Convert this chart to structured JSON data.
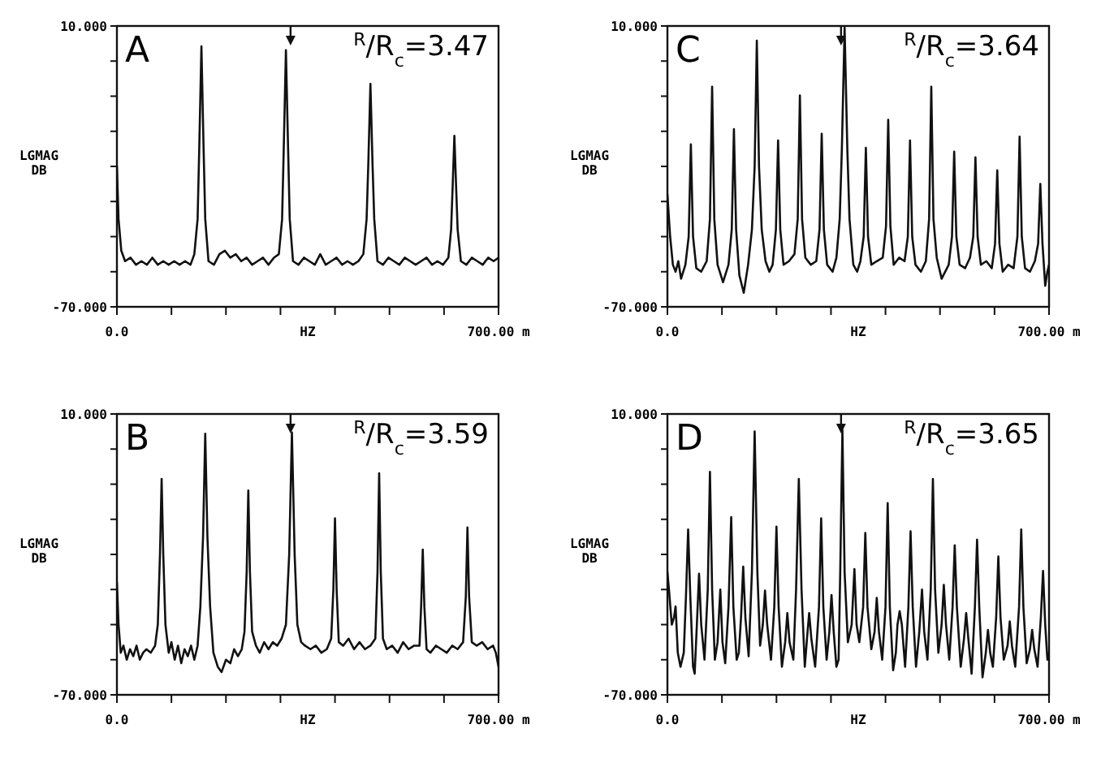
{
  "chart_data": [
    {
      "type": "line",
      "title": "A",
      "annotations": [
        "$^{R}$/R$_{c}$=3.47"
      ],
      "xlabel": "HZ",
      "ylabel": "LGMAG\nDB",
      "xlim": [
        0,
        700
      ],
      "ylim": [
        -70,
        10
      ],
      "xticks": [
        {
          "value": 0,
          "label": "0.0"
        },
        {
          "value": 100,
          "label": null
        },
        {
          "value": 200,
          "label": null
        },
        {
          "value": 300,
          "label": null
        },
        {
          "value": 400,
          "label": null
        },
        {
          "value": 500,
          "label": null
        },
        {
          "value": 600,
          "label": null
        },
        {
          "value": 700,
          "label": "700.00 m"
        }
      ],
      "yticks": [
        {
          "value": 10,
          "label": "10.000"
        },
        {
          "value": 0,
          "label": null
        },
        {
          "value": -10,
          "label": null
        },
        {
          "value": -20,
          "label": null
        },
        {
          "value": -30,
          "label": null
        },
        {
          "value": -40,
          "label": null
        },
        {
          "value": -50,
          "label": null
        },
        {
          "value": -60,
          "label": null
        },
        {
          "value": -70,
          "label": "-70.000"
        }
      ],
      "color": "#111111",
      "x": [
        0,
        3,
        8,
        15,
        25,
        35,
        45,
        55,
        65,
        75,
        85,
        95,
        105,
        115,
        125,
        135,
        142,
        148,
        151,
        155,
        159,
        162,
        168,
        178,
        188,
        198,
        208,
        218,
        228,
        238,
        248,
        258,
        268,
        278,
        288,
        297,
        303,
        306,
        310,
        314,
        317,
        323,
        333,
        343,
        353,
        363,
        373,
        383,
        393,
        403,
        413,
        423,
        433,
        443,
        452,
        458,
        461,
        465,
        469,
        472,
        478,
        488,
        498,
        508,
        518,
        528,
        538,
        548,
        558,
        568,
        578,
        588,
        598,
        608,
        613,
        616,
        619,
        622,
        625,
        631,
        641,
        651,
        661,
        671,
        681,
        691,
        700
      ],
      "values": [
        -30,
        -45,
        -54,
        -57,
        -56,
        -58,
        -57,
        -58,
        -56,
        -58,
        -57,
        -58,
        -57,
        -58,
        -57,
        -58,
        -55,
        -45,
        -25,
        4.2,
        -25,
        -45,
        -57,
        -58,
        -55,
        -54,
        -56,
        -55,
        -57,
        -56,
        -58,
        -57,
        -56,
        -58,
        -56,
        -55,
        -45,
        -25,
        3.1,
        -25,
        -45,
        -57,
        -58,
        -56,
        -57,
        -58,
        -55,
        -58,
        -57,
        -56,
        -58,
        -57,
        -58,
        -57,
        -55,
        -45,
        -30,
        -6.5,
        -30,
        -45,
        -57,
        -58,
        -56,
        -57,
        -58,
        -56,
        -57,
        -58,
        -57,
        -56,
        -58,
        -57,
        -58,
        -56,
        -48,
        -35,
        -21.3,
        -35,
        -48,
        -57,
        -58,
        -56,
        -57,
        -58,
        -56,
        -57,
        -56
      ]
    },
    {
      "type": "line",
      "title": "C",
      "annotations": [
        "$^{R}$/R$_{c}$=3.64"
      ],
      "xlabel": "HZ",
      "ylabel": "LGMAG\nDB",
      "xlim": [
        0,
        700
      ],
      "ylim": [
        -70,
        10
      ],
      "xticks": [
        {
          "value": 0,
          "label": "0.0"
        },
        {
          "value": 100,
          "label": null
        },
        {
          "value": 200,
          "label": null
        },
        {
          "value": 300,
          "label": null
        },
        {
          "value": 400,
          "label": null
        },
        {
          "value": 500,
          "label": null
        },
        {
          "value": 600,
          "label": null
        },
        {
          "value": 700,
          "label": "700.00 m"
        }
      ],
      "yticks": [
        {
          "value": 10,
          "label": "10.000"
        },
        {
          "value": 0,
          "label": null
        },
        {
          "value": -10,
          "label": null
        },
        {
          "value": -20,
          "label": null
        },
        {
          "value": -30,
          "label": null
        },
        {
          "value": -40,
          "label": null
        },
        {
          "value": -50,
          "label": null
        },
        {
          "value": -60,
          "label": null
        },
        {
          "value": -70,
          "label": "-70.000"
        }
      ],
      "color": "#111111",
      "x": [
        0,
        5,
        10,
        15,
        20,
        25,
        33,
        39,
        43,
        47,
        53,
        62,
        72,
        78,
        82,
        86,
        92,
        102,
        112,
        118,
        122,
        126,
        132,
        140,
        148,
        155,
        160,
        164,
        168,
        173,
        180,
        187,
        193,
        199,
        203,
        207,
        213,
        223,
        233,
        239,
        243,
        247,
        253,
        263,
        273,
        279,
        283,
        287,
        293,
        303,
        310,
        316,
        320,
        325,
        330,
        334,
        341,
        348,
        354,
        360,
        364,
        368,
        374,
        384,
        395,
        401,
        405,
        409,
        415,
        425,
        435,
        441,
        445,
        449,
        455,
        465,
        474,
        480,
        484,
        488,
        494,
        503,
        516,
        522,
        526,
        530,
        536,
        546,
        555,
        561,
        565,
        569,
        575,
        585,
        595,
        601,
        605,
        609,
        615,
        625,
        635,
        642,
        646,
        650,
        656,
        665,
        674,
        680,
        684,
        688,
        693,
        697,
        700
      ],
      "values": [
        -38,
        -50,
        -58,
        -60,
        -57,
        -62,
        -58,
        -50,
        -23.7,
        -50,
        -59,
        -60,
        -57,
        -45,
        -7.3,
        -45,
        -58,
        -63,
        -58,
        -48,
        -19.4,
        -48,
        -61,
        -66,
        -58,
        -48,
        -30,
        5.8,
        -30,
        -48,
        -57,
        -60,
        -58,
        -48,
        -22.6,
        -48,
        -58,
        -57,
        -55,
        -45,
        -9.8,
        -45,
        -56,
        -58,
        -57,
        -48,
        -20.7,
        -48,
        -58,
        -60,
        -56,
        -45,
        -25,
        9.5,
        -25,
        -45,
        -58,
        -60,
        -57,
        -50,
        -24.7,
        -50,
        -58,
        -57,
        -56,
        -47,
        -16.7,
        -47,
        -58,
        -56,
        -57,
        -50,
        -22.6,
        -50,
        -58,
        -60,
        -57,
        -45,
        -7.3,
        -45,
        -56,
        -62,
        -58,
        -50,
        -25.8,
        -50,
        -58,
        -59,
        -56,
        -50,
        -27.4,
        -50,
        -58,
        -57,
        -59,
        -52,
        -31.1,
        -52,
        -60,
        -58,
        -59,
        -50,
        -21.5,
        -50,
        -59,
        -60,
        -57,
        -52,
        -35,
        -52,
        -64,
        -60,
        -58
      ]
    },
    {
      "type": "line",
      "title": "B",
      "annotations": [
        "$^{R}$/R$_{c}$=3.59"
      ],
      "xlabel": "HZ",
      "ylabel": "LGMAG\nDB",
      "xlim": [
        0,
        700
      ],
      "ylim": [
        -70,
        10
      ],
      "xticks": [
        {
          "value": 0,
          "label": "0.0"
        },
        {
          "value": 100,
          "label": null
        },
        {
          "value": 200,
          "label": null
        },
        {
          "value": 300,
          "label": null
        },
        {
          "value": 400,
          "label": null
        },
        {
          "value": 500,
          "label": null
        },
        {
          "value": 600,
          "label": null
        },
        {
          "value": 700,
          "label": "700.00 m"
        }
      ],
      "yticks": [
        {
          "value": 10,
          "label": "10.000"
        },
        {
          "value": 0,
          "label": null
        },
        {
          "value": -10,
          "label": null
        },
        {
          "value": -20,
          "label": null
        },
        {
          "value": -30,
          "label": null
        },
        {
          "value": -40,
          "label": null
        },
        {
          "value": -50,
          "label": null
        },
        {
          "value": -60,
          "label": null
        },
        {
          "value": -70,
          "label": "-70.000"
        }
      ],
      "color": "#111111",
      "x": [
        0,
        3,
        7,
        12,
        18,
        24,
        30,
        36,
        42,
        48,
        54,
        62,
        70,
        75,
        79,
        82,
        85,
        89,
        95,
        100,
        106,
        112,
        118,
        124,
        130,
        136,
        142,
        148,
        153,
        158,
        162,
        166,
        171,
        177,
        185,
        192,
        200,
        208,
        215,
        222,
        229,
        234,
        238,
        241,
        244,
        248,
        255,
        262,
        270,
        278,
        286,
        294,
        302,
        310,
        316,
        321,
        326,
        331,
        338,
        345,
        355,
        365,
        375,
        385,
        393,
        397,
        400,
        403,
        407,
        415,
        425,
        435,
        445,
        455,
        465,
        474,
        478,
        481,
        484,
        488,
        495,
        505,
        515,
        525,
        535,
        545,
        555,
        558,
        561,
        564,
        568,
        575,
        585,
        595,
        605,
        615,
        625,
        635,
        640,
        643,
        646,
        651,
        660,
        670,
        680,
        690,
        695,
        700
      ],
      "values": [
        -38,
        -50,
        -58,
        -56,
        -60,
        -57,
        -59,
        -56,
        -60,
        -58,
        -57,
        -58,
        -56,
        -50,
        -30,
        -8.5,
        -30,
        -50,
        -58,
        -55,
        -60,
        -56,
        -61,
        -57,
        -59,
        -56,
        -60,
        -56,
        -45,
        -25,
        4.4,
        -25,
        -45,
        -58,
        -62,
        -63.5,
        -60,
        -61,
        -57,
        -59,
        -57,
        -52,
        -35,
        -11.8,
        -35,
        -52,
        -56,
        -58,
        -55,
        -57,
        -55,
        -56,
        -54,
        -50,
        -30,
        4.7,
        -30,
        -50,
        -55,
        -56,
        -57,
        -56,
        -58,
        -57,
        -54,
        -40,
        -19.7,
        -40,
        -55,
        -56,
        -54,
        -57,
        -55,
        -57,
        -56,
        -54,
        -35,
        -6.9,
        -35,
        -54,
        -57,
        -56,
        -58,
        -55,
        -57,
        -56,
        -56,
        -45,
        -28.6,
        -45,
        -57,
        -58,
        -56,
        -57,
        -58,
        -56,
        -57,
        -55,
        -42,
        -22.3,
        -42,
        -55,
        -56,
        -55,
        -57,
        -56,
        -58,
        -62
      ]
    },
    {
      "type": "line",
      "title": "D",
      "annotations": [
        "$^{R}$/R$_{c}$=3.65"
      ],
      "xlabel": "HZ",
      "ylabel": "LGMAG\nDB",
      "xlim": [
        0,
        700
      ],
      "ylim": [
        -70,
        10
      ],
      "xticks": [
        {
          "value": 0,
          "label": "0.0"
        },
        {
          "value": 100,
          "label": null
        },
        {
          "value": 200,
          "label": null
        },
        {
          "value": 300,
          "label": null
        },
        {
          "value": 400,
          "label": null
        },
        {
          "value": 500,
          "label": null
        },
        {
          "value": 600,
          "label": null
        },
        {
          "value": 700,
          "label": "700.00 m"
        }
      ],
      "yticks": [
        {
          "value": 10,
          "label": "10.000"
        },
        {
          "value": 0,
          "label": null
        },
        {
          "value": -10,
          "label": null
        },
        {
          "value": -20,
          "label": null
        },
        {
          "value": -30,
          "label": null
        },
        {
          "value": -40,
          "label": null
        },
        {
          "value": -50,
          "label": null
        },
        {
          "value": -60,
          "label": null
        },
        {
          "value": -70,
          "label": "-70.000"
        }
      ],
      "color": "#111111",
      "x": [
        0,
        3,
        8,
        12,
        15,
        19,
        24,
        30,
        34,
        38,
        42,
        47,
        50,
        54,
        58,
        62,
        68,
        74,
        78,
        82,
        87,
        92,
        97,
        101,
        106,
        112,
        117,
        121,
        127,
        131,
        135,
        139,
        143,
        149,
        155,
        160,
        165,
        170,
        175,
        179,
        183,
        190,
        196,
        200,
        204,
        210,
        216,
        220,
        224,
        231,
        236,
        241,
        246,
        252,
        256,
        260,
        264,
        271,
        278,
        282,
        286,
        292,
        297,
        301,
        305,
        310,
        314,
        317,
        321,
        325,
        331,
        338,
        343,
        347,
        352,
        359,
        363,
        367,
        374,
        380,
        384,
        388,
        394,
        400,
        404,
        408,
        414,
        419,
        422,
        426,
        430,
        436,
        442,
        446,
        450,
        456,
        462,
        467,
        471,
        477,
        483,
        487,
        491,
        497,
        503,
        507,
        511,
        517,
        523,
        527,
        531,
        538,
        544,
        548,
        552,
        558,
        564,
        568,
        572,
        578,
        584,
        588,
        592,
        597,
        603,
        607,
        611,
        617,
        624,
        628,
        632,
        638,
        645,
        649,
        653,
        659,
        665,
        669,
        673,
        679,
        685,
        689,
        693,
        697,
        700
      ],
      "values": [
        -35,
        -40.3,
        -50,
        -48,
        -44.8,
        -58,
        -62,
        -58,
        -42,
        -22.9,
        -42,
        -62,
        -64,
        -50,
        -35.5,
        -50,
        -60,
        -40,
        -6.5,
        -40,
        -60,
        -55,
        -40,
        -55,
        -61,
        -45,
        -19.4,
        -45,
        -60,
        -58,
        -48,
        -33.5,
        -48,
        -59,
        -35,
        5,
        -35,
        -56,
        -50,
        -40.3,
        -50,
        -60,
        -45,
        -22.1,
        -45,
        -62,
        -55,
        -46.7,
        -55,
        -60,
        -40,
        -8.5,
        -40,
        -62,
        -54,
        -46.7,
        -54,
        -62,
        -45,
        -19.7,
        -45,
        -60,
        -52,
        -41.6,
        -52,
        -62,
        -60,
        -35,
        5.5,
        -35,
        -55,
        -50,
        -34.2,
        -50,
        -55,
        -45,
        -23.9,
        -45,
        -57,
        -52,
        -42.4,
        -52,
        -60,
        -45,
        -15.4,
        -45,
        -63,
        -58,
        -50,
        -46.2,
        -50,
        -62,
        -45,
        -23.4,
        -45,
        -62,
        -52,
        -40,
        -52,
        -60,
        -40,
        -8.5,
        -40,
        -58,
        -50,
        -38.7,
        -50,
        -60,
        -45,
        -27.4,
        -45,
        -62,
        -54,
        -46.7,
        -54,
        -64,
        -45,
        -25.8,
        -45,
        -65,
        -58,
        -51.5,
        -58,
        -62,
        -48,
        -30.6,
        -48,
        -60,
        -56,
        -49.1,
        -56,
        -62,
        -45,
        -22.9,
        -45,
        -61,
        -57,
        -51.5,
        -57,
        -62,
        -48,
        -34.7,
        -50,
        -60,
        -58
      ]
    }
  ]
}
